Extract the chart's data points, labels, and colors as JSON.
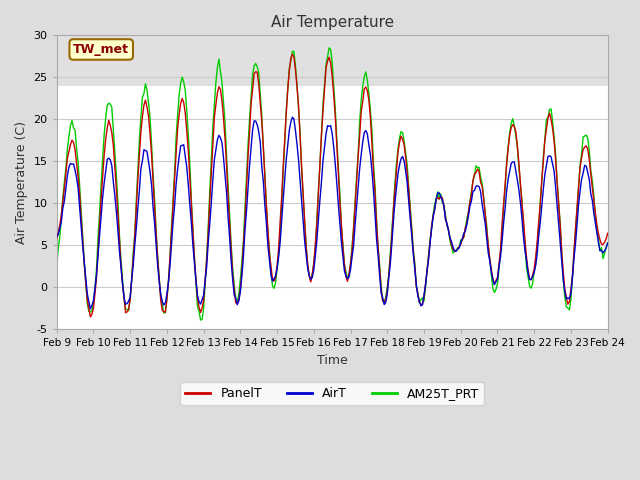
{
  "title": "Air Temperature",
  "xlabel": "Time",
  "ylabel": "Air Temperature (C)",
  "ylim": [
    -5,
    30
  ],
  "xlim": [
    0,
    360
  ],
  "outer_bg": "#dddddd",
  "plot_bg": "#ffffff",
  "band_color": "#e0e0e0",
  "band_ymin": 24,
  "band_ymax": 30,
  "grid_color": "#cccccc",
  "series": [
    "PanelT",
    "AirT",
    "AM25T_PRT"
  ],
  "colors": [
    "#cc0000",
    "#0000cc",
    "#00cc00"
  ],
  "linewidths": [
    1.0,
    1.0,
    1.0
  ],
  "xtick_labels": [
    "Feb 9",
    "Feb 10",
    "Feb 11",
    "Feb 12",
    "Feb 13",
    "Feb 14",
    "Feb 15",
    "Feb 16",
    "Feb 17",
    "Feb 18",
    "Feb 19",
    "Feb 20",
    "Feb 21",
    "Feb 22",
    "Feb 23",
    "Feb 24"
  ],
  "xtick_positions": [
    0,
    24,
    48,
    72,
    96,
    120,
    144,
    168,
    192,
    216,
    240,
    264,
    288,
    312,
    336,
    360
  ],
  "ytick_labels": [
    "-5",
    "0",
    "5",
    "10",
    "15",
    "20",
    "25",
    "30"
  ],
  "ytick_positions": [
    -5,
    0,
    5,
    10,
    15,
    20,
    25,
    30
  ],
  "annotation_text": "TW_met",
  "annotation_color": "#8b0000",
  "annotation_bg": "#ffffcc",
  "annotation_border": "#996600",
  "figsize": [
    6.4,
    4.8
  ],
  "dpi": 100
}
